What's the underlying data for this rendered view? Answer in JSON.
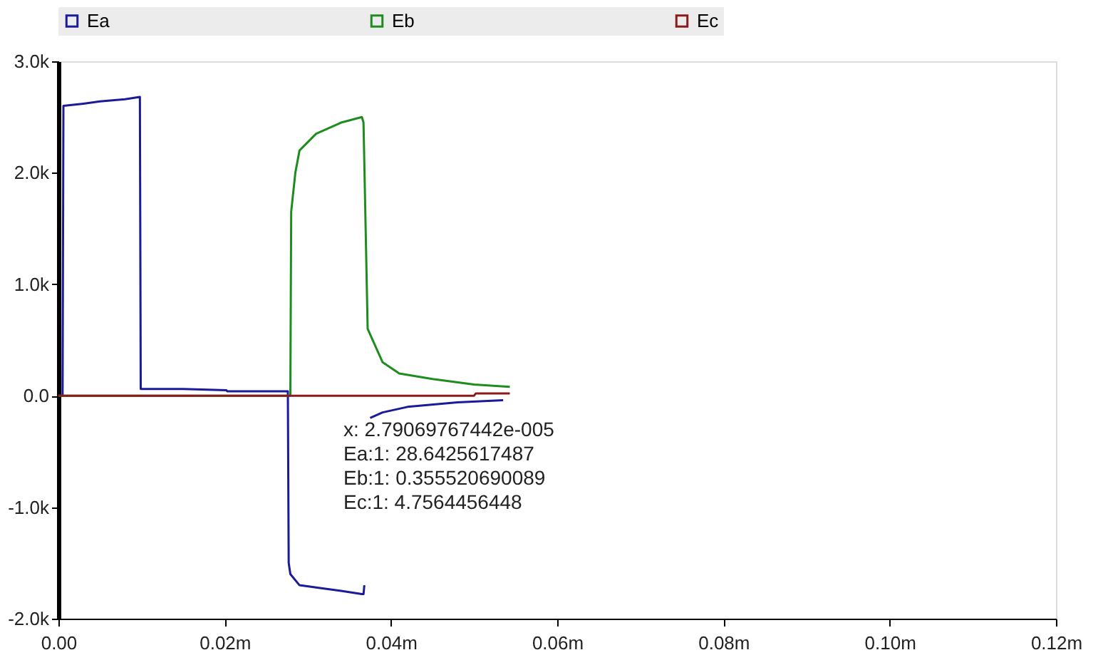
{
  "chart_data": {
    "type": "line",
    "series": [
      {
        "name": "Ea",
        "color": "#1a1a9a",
        "x": [
          0.0,
          0.0005,
          0.0006,
          0.003,
          0.005,
          0.008,
          0.0098,
          0.0099,
          0.015,
          0.0202,
          0.0203,
          0.0276,
          0.0277,
          0.0279,
          0.029,
          0.031,
          0.034,
          0.0365,
          0.0367,
          0.0368,
          null,
          0.0375,
          0.039,
          0.042,
          0.048,
          0.0535
        ],
        "values": [
          0,
          0,
          2600,
          2620,
          2640,
          2660,
          2680,
          60,
          60,
          50,
          40,
          40,
          -1500,
          -1600,
          -1700,
          -1720,
          -1750,
          -1780,
          -1780,
          -1700,
          null,
          -200,
          -150,
          -100,
          -60,
          -40
        ]
      },
      {
        "name": "Eb",
        "color": "#1e8c1e",
        "x": [
          0.0,
          0.0279,
          0.028,
          0.0285,
          0.029,
          0.031,
          0.034,
          0.0365,
          0.0367,
          0.0372,
          0.039,
          0.041,
          0.045,
          0.05,
          0.0543
        ],
        "values": [
          0,
          0,
          1650,
          2000,
          2200,
          2350,
          2450,
          2500,
          2450,
          600,
          300,
          200,
          150,
          100,
          80
        ]
      },
      {
        "name": "Ec",
        "color": "#8b1a1a",
        "x": [
          0.0,
          0.0365,
          0.0367,
          0.05,
          0.0502,
          0.0543
        ],
        "values": [
          0,
          0,
          0,
          0,
          20,
          20
        ]
      }
    ],
    "xlim": [
      0,
      0.12
    ],
    "xticks": [
      {
        "value": 0,
        "label": "0.00"
      },
      {
        "value": 0.02,
        "label": "0.02m"
      },
      {
        "value": 0.04,
        "label": "0.04m"
      },
      {
        "value": 0.06,
        "label": "0.06m"
      },
      {
        "value": 0.08,
        "label": "0.08m"
      },
      {
        "value": 0.1,
        "label": "0.10m"
      },
      {
        "value": 0.12,
        "label": "0.12m"
      }
    ],
    "ylim": [
      -2000,
      3000
    ],
    "yticks": [
      {
        "value": -2000,
        "label": "-2.0k"
      },
      {
        "value": -1000,
        "label": "-1.0k"
      },
      {
        "value": 0,
        "label": "0.0"
      },
      {
        "value": 1000,
        "label": "1.0k"
      },
      {
        "value": 2000,
        "label": "2.0k"
      },
      {
        "value": 3000,
        "label": "3.0k"
      }
    ],
    "annotations": [
      "x: 2.79069767442e-005",
      "Ea:1: 28.6425617487",
      "Eb:1: 0.355520690089",
      "Ec:1: 4.7564456448"
    ],
    "legend": "top",
    "grid": false,
    "marker": "none",
    "line_style": "solid"
  }
}
